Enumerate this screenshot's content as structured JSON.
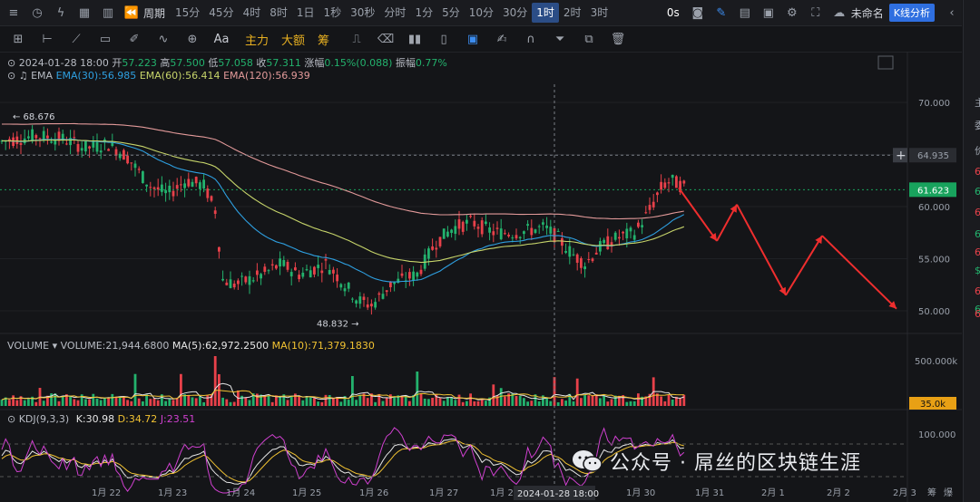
{
  "topbar": {
    "period_label": "周期",
    "timeframes": [
      "15分",
      "45分",
      "4时",
      "8时",
      "1日",
      "1秒",
      "30秒",
      "分时",
      "1分",
      "5分",
      "10分",
      "30分",
      "1时",
      "2时",
      "3时"
    ],
    "active_timeframe": "1时",
    "zero_s": "0s",
    "layout_name": "未命名",
    "kline_button": "K线分析"
  },
  "toolbar": {
    "zhuli": "主力",
    "dae": "大额",
    "chou": "筹",
    "aa": "Aa"
  },
  "ohlc": {
    "datetime": "2024-01-28 18:00",
    "open_label": "开",
    "open": "57.223",
    "high_label": "高",
    "high": "57.500",
    "low_label": "低",
    "low": "57.058",
    "close_label": "收",
    "close": "57.311",
    "change_label": "涨幅",
    "change": "0.15%(0.088)",
    "amp_label": "振幅",
    "amp": "0.77%"
  },
  "ema": {
    "label": "EMA",
    "e30": "EMA(30):56.985",
    "e60": "EMA(60):56.414",
    "e120": "EMA(120):56.939"
  },
  "volume": {
    "label": "VOLUME",
    "value": "VOLUME:21,944.6800",
    "ma5": "MA(5):62,972.2500",
    "ma10": "MA(10):71,379.1830",
    "axis_top": "500.000k",
    "current": "35.0k"
  },
  "kdj": {
    "label": "KDJ(9,3,3)",
    "k": "K:30.98",
    "d": "D:34.72",
    "j": "J:23.51",
    "axis_top": "100.000"
  },
  "price_axis": {
    "ticks": [
      "70.000",
      "65.000",
      "60.000",
      "55.000",
      "50.000"
    ],
    "crosshair_price": "64.935",
    "current_price": "61.623",
    "high_marker": "68.676",
    "low_marker": "48.832"
  },
  "time_axis": {
    "labels": [
      "1月 22",
      "1月 23",
      "1月 24",
      "1月 25",
      "1月 26",
      "1月 27",
      "1月 2",
      "1月 30",
      "1月 31",
      "2月 1",
      "2月 2",
      "2月 3"
    ],
    "crosshair_time": "2024-01-28 18:00",
    "end_label": "筹",
    "end_label2": "爆"
  },
  "right_panel": {
    "items": [
      "主",
      "委",
      "价",
      "6",
      "6",
      "6",
      "6",
      "6",
      "$",
      "6",
      "6",
      "6"
    ]
  },
  "watermark": "公众号 · 屌丝的区块链生涯",
  "colors": {
    "up": "#23b26d",
    "down": "#e8414a",
    "ema30": "#2e9fe0",
    "ema60": "#c6d46a",
    "ema120": "#e39a9a",
    "arrow": "#ef2e2e",
    "current_price_bg": "#18a35d",
    "volume_bg": "#e8a015",
    "ma5": "#e6e6e6",
    "ma10": "#f1c232"
  },
  "chart_data": {
    "type": "candlestick",
    "price_range": [
      47,
      73
    ],
    "current_price": 61.623,
    "ema_last": {
      "ema30": 56.985,
      "ema60": 56.414,
      "ema120": 56.939
    },
    "high_marker": 68.676,
    "low_marker": 48.832
  }
}
